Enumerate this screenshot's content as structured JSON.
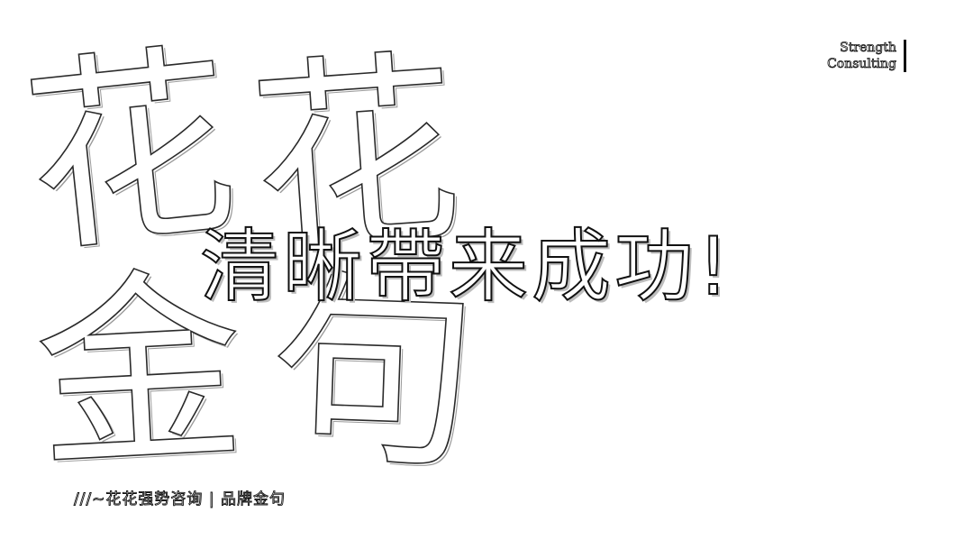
{
  "background_characters": [
    "花",
    "花",
    "金",
    "句"
  ],
  "slogan": "清晰帶来成功!",
  "brand": {
    "line1": "Strength",
    "line2": "Consulting"
  },
  "footer": "///~花花强势咨询 | 品牌金句"
}
